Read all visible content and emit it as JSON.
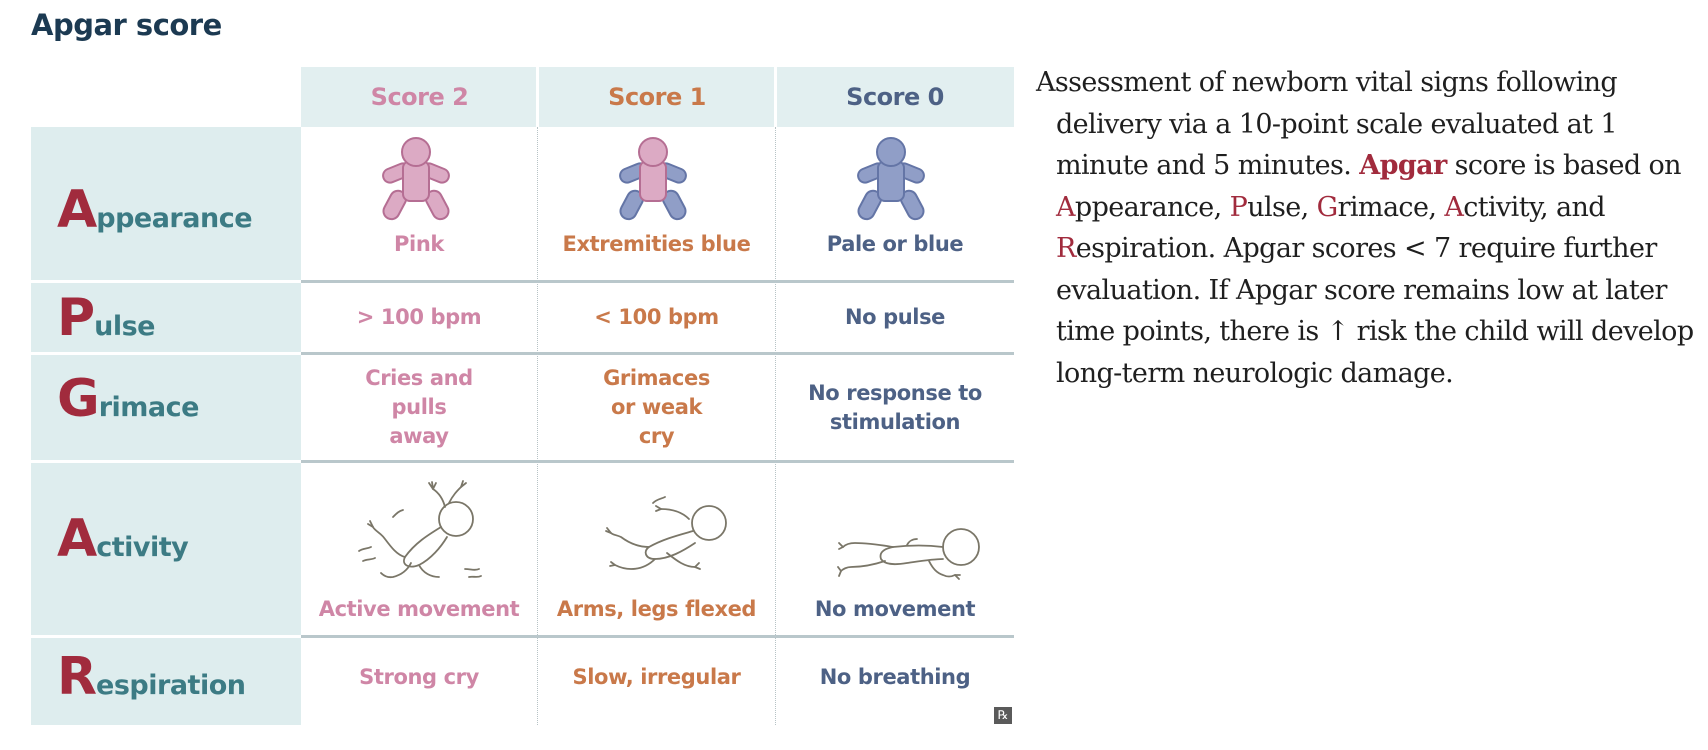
{
  "title": "Apgar score",
  "columns": [
    {
      "label": "Score 2",
      "color": "#cf86a6"
    },
    {
      "label": "Score 1",
      "color": "#c9794a"
    },
    {
      "label": "Score 0",
      "color": "#4d6185"
    }
  ],
  "rows": [
    {
      "initial": "A",
      "rest": "ppearance",
      "cells": [
        "Pink",
        "Extremities blue",
        "Pale or blue"
      ]
    },
    {
      "initial": "P",
      "rest": "ulse",
      "cells": [
        "> 100 bpm",
        "< 100 bpm",
        "No pulse"
      ]
    },
    {
      "initial": "G",
      "rest": "rimace",
      "cells": [
        "Cries and pulls away",
        "Grimaces or weak cry",
        "No response to stimulation"
      ]
    },
    {
      "initial": "A",
      "rest": "ctivity",
      "cells": [
        "Active movement",
        "Arms, legs flexed",
        "No movement"
      ]
    },
    {
      "initial": "R",
      "rest": "espiration",
      "cells": [
        "Strong cry",
        "Slow, irregular",
        "No breathing"
      ]
    }
  ],
  "icons": {
    "baby_pink": "baby-pink-icon",
    "baby_extremities_blue": "baby-extremities-blue-icon",
    "baby_pale_blue": "baby-pale-blue-icon",
    "baby_active": "baby-active-movement-icon",
    "baby_flexed": "baby-flexed-icon",
    "baby_limp": "baby-no-movement-icon",
    "rx_badge": "rx-badge-icon"
  },
  "rx_badge": "℞",
  "colors": {
    "title": "#1c3a52",
    "accent_red": "#a12b3d",
    "label_teal": "#3c7b84",
    "pink": "#d9a7c0",
    "blue": "#909ec7",
    "header_bg": "#e2eff0",
    "label_bg": "#deedee"
  },
  "description": {
    "p1": "Assessment of newborn vital signs following delivery via a 10-point scale evaluated at 1 minute and 5 minutes. ",
    "apgar": "Apgar",
    "p2": " score is based on ",
    "A1": "A",
    "appearance": "ppearance, ",
    "P": "P",
    "pulse": "ulse, ",
    "G": "G",
    "grimace": "rimace, ",
    "A2": "A",
    "activity": "ctivity, and ",
    "R": "R",
    "respiration": "espiration. Apgar scores < 7 require further evaluation. If Apgar score remains low at later time points, there is ↑ risk the child will develop long-term neurologic damage."
  }
}
